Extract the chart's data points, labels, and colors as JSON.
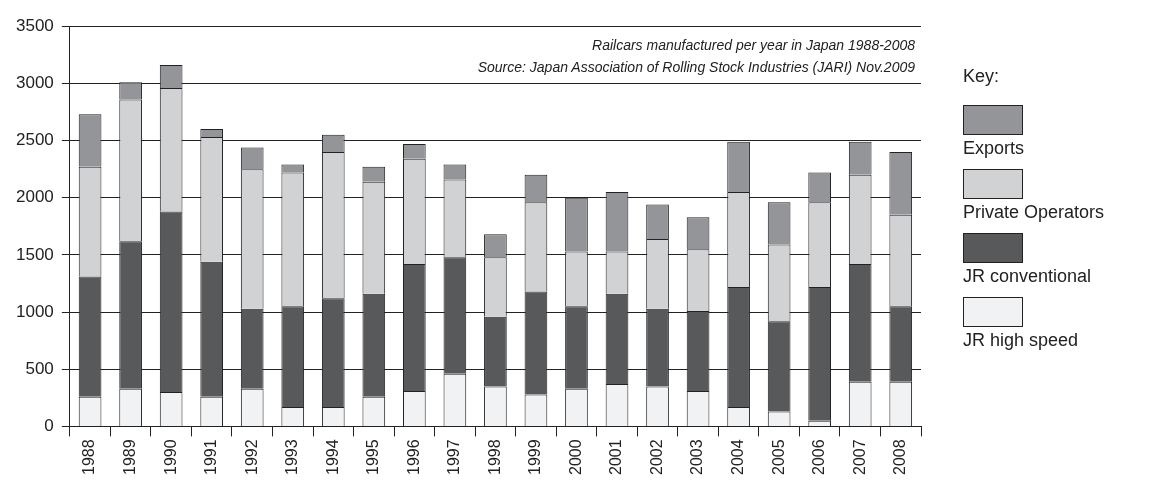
{
  "chart_data": {
    "type": "bar",
    "stacked": true,
    "categories": [
      "1988",
      "1989",
      "1990",
      "1991",
      "1992",
      "1993",
      "1994",
      "1995",
      "1996",
      "1997",
      "1998",
      "1999",
      "2000",
      "2001",
      "2002",
      "2003",
      "2004",
      "2005",
      "2006",
      "2007",
      "2008"
    ],
    "series": [
      {
        "name": "JR high speed",
        "color": "#f1f2f4",
        "values": [
          260,
          330,
          300,
          260,
          330,
          170,
          170,
          260,
          310,
          460,
          350,
          280,
          330,
          370,
          350,
          310,
          170,
          130,
          50,
          390,
          390
        ]
      },
      {
        "name": "JR conventional",
        "color": "#58595b",
        "values": [
          1050,
          1290,
          1580,
          1180,
          700,
          880,
          950,
          900,
          1110,
          1020,
          610,
          900,
          720,
          790,
          680,
          700,
          1050,
          790,
          1170,
          1030,
          660
        ]
      },
      {
        "name": "Private Operators",
        "color": "#d1d2d4",
        "values": [
          960,
          1240,
          1080,
          1090,
          1220,
          1170,
          1280,
          980,
          920,
          680,
          520,
          780,
          480,
          370,
          610,
          540,
          830,
          670,
          740,
          780,
          800
        ]
      },
      {
        "name": "Exports",
        "color": "#939598",
        "values": [
          460,
          150,
          200,
          70,
          190,
          70,
          150,
          130,
          130,
          130,
          200,
          240,
          470,
          520,
          300,
          280,
          440,
          370,
          260,
          290,
          550
        ]
      }
    ],
    "ylim": [
      0,
      3500
    ],
    "yticks": [
      0,
      500,
      1000,
      1500,
      2000,
      2500,
      3000,
      3500
    ],
    "grid": "y",
    "legend": "right",
    "legend_title": "Key:",
    "annotations": [
      "Railcars manufactured per year in Japan 1988-2008",
      "Source: Japan Association of Rolling Stock Industries (JARI) Nov.2009"
    ]
  }
}
